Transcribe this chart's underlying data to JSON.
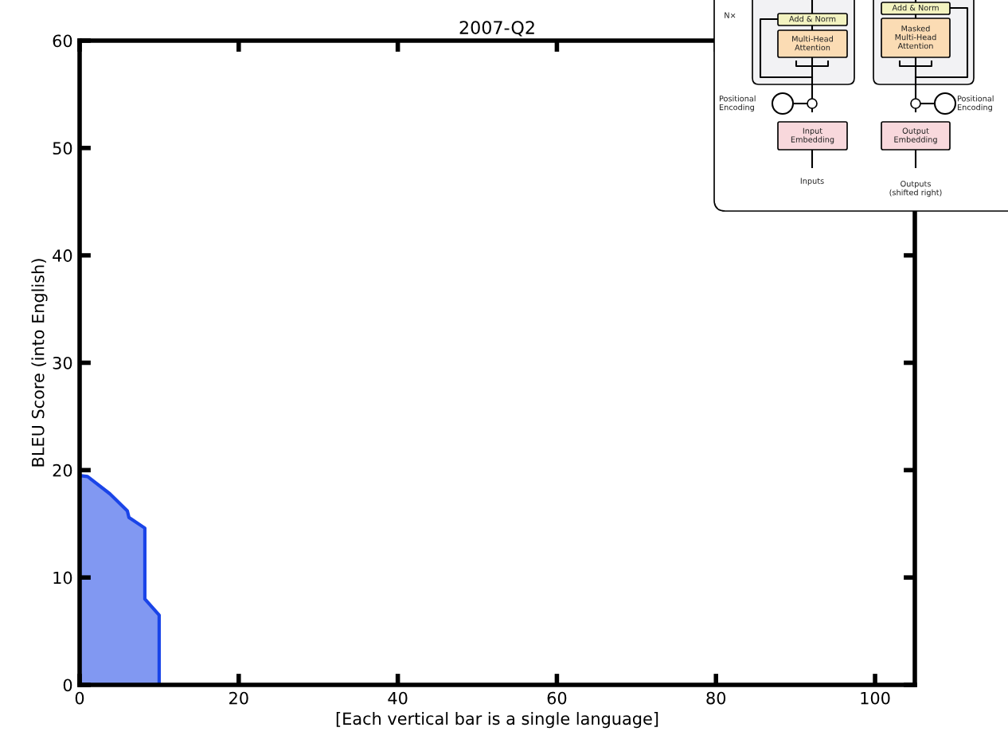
{
  "chart_data": {
    "type": "area",
    "title": "2007-Q2",
    "xlabel": "[Each vertical bar is a single language]",
    "ylabel": "BLEU Score (into English)",
    "series": [
      {
        "color": "#1a44e8",
        "x": [
          0,
          1,
          3.8,
          6,
          6.2,
          8.2,
          8.2,
          10,
          10
        ],
        "values": [
          19.5,
          19.4,
          17.8,
          16.2,
          15.6,
          14.6,
          8.0,
          6.5,
          0
        ]
      }
    ],
    "xlim": [
      0,
      105
    ],
    "xticks": [
      0,
      20,
      40,
      60,
      80,
      100
    ],
    "ylim": [
      0,
      60
    ],
    "yticks": [
      0,
      10,
      20,
      30,
      40,
      50,
      60
    ],
    "grid": false,
    "annotations": [
      "N×",
      "Add & Norm",
      "Multi-Head\nAttention",
      "Add & Norm",
      "Masked\nMulti-Head\nAttention",
      "Positional\nEncoding",
      "Positional\nEncoding",
      "Input\nEmbedding",
      "Output\nEmbedding",
      "Inputs",
      "Outputs\n(shifted right)"
    ]
  }
}
